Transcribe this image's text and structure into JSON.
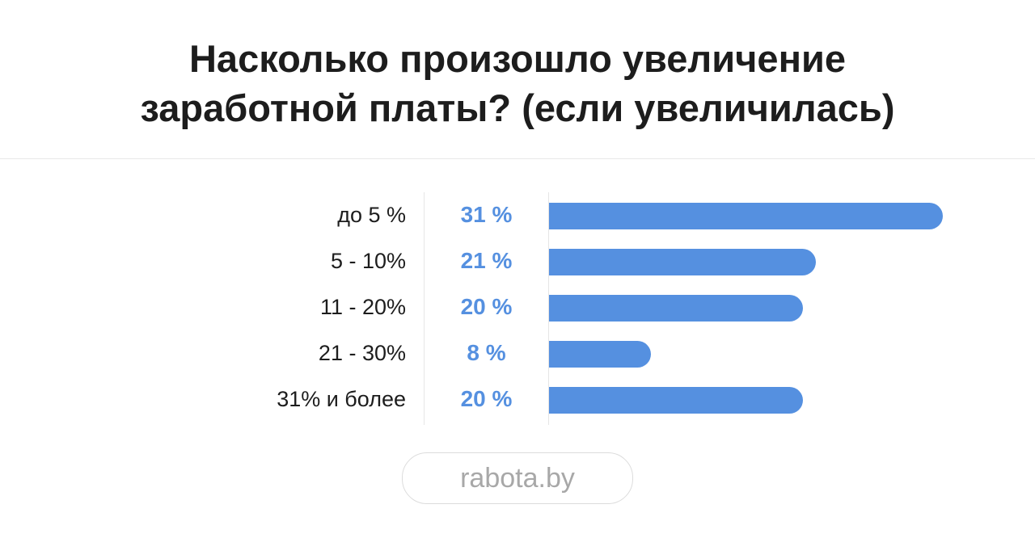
{
  "chart_data": {
    "type": "bar",
    "orientation": "horizontal",
    "title": "Насколько произошло увеличение заработной платы? (если увеличилась)",
    "title_lines": [
      "Насколько произошло увеличение",
      "заработной платы? (если увеличилась)"
    ],
    "categories": [
      "до 5 %",
      "5 - 10%",
      "11 - 20%",
      "21 - 30%",
      "31% и более"
    ],
    "values": [
      31,
      21,
      20,
      8,
      20
    ],
    "value_labels": [
      "31 %",
      "21 %",
      "20 %",
      "8 %",
      "20 %"
    ],
    "unit": "%",
    "grid": false,
    "bar_color": "#5590e0"
  },
  "footer": {
    "brand": "rabota.by"
  }
}
